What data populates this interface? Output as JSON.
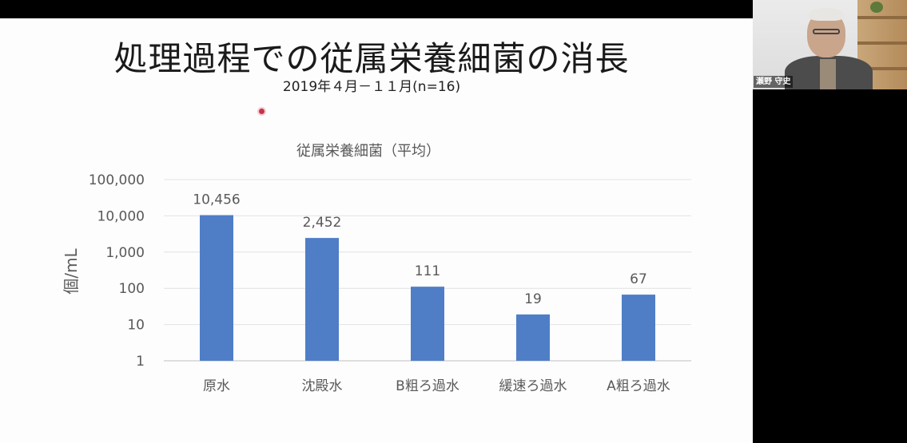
{
  "slide": {
    "title": "処理過程での従属栄養細菌の消長",
    "subtitle": "2019年４月－１１月(n=16)"
  },
  "participant": {
    "name": "瀬野 守史"
  },
  "chart_data": {
    "type": "bar",
    "title": "従属栄養細菌（平均）",
    "ylabel": "個/mL",
    "xlabel": "",
    "yscale": "log",
    "ylim": [
      1,
      100000
    ],
    "yticks": [
      1,
      10,
      100,
      1000,
      10000,
      100000
    ],
    "ytick_labels": [
      "1",
      "10",
      "100",
      "1,000",
      "10,000",
      "100,000"
    ],
    "categories": [
      "原水",
      "沈殿水",
      "B粗ろ過水",
      "緩速ろ過水",
      "A粗ろ過水"
    ],
    "values": [
      10456,
      2452,
      111,
      19,
      67
    ],
    "value_labels": [
      "10,456",
      "2,452",
      "111",
      "19",
      "67"
    ],
    "bar_color": "#4f7ec7",
    "grid": true,
    "legend": "none"
  }
}
